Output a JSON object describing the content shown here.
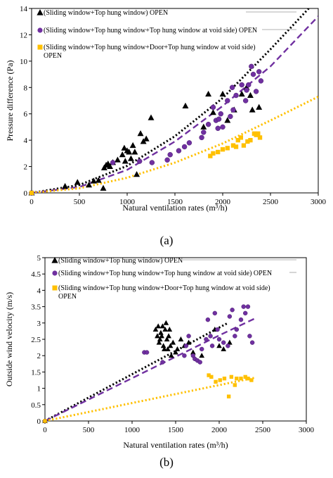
{
  "panels": [
    {
      "label": "(a)",
      "chart_data": {
        "type": "scatter",
        "xlabel": "Natural ventilation rates (m³/h)",
        "ylabel": "Pressure difference (Pa)",
        "xlim": [
          0,
          3000
        ],
        "ylim": [
          0,
          14
        ],
        "xticks": [
          "0",
          "500",
          "1000",
          "1500",
          "2000",
          "2500",
          "3000"
        ],
        "yticks": [
          "0",
          "2",
          "4",
          "6",
          "8",
          "10",
          "12",
          "14"
        ],
        "xtick_values": [
          0,
          500,
          1000,
          1500,
          2000,
          2500,
          3000
        ],
        "ytick_values": [
          0,
          2,
          4,
          6,
          8,
          10,
          12,
          14
        ],
        "grid": false,
        "legend_position": "top-left",
        "series": [
          {
            "name": "(Sliding window+Top hung window) OPEN",
            "marker": "triangle",
            "color": "#000000",
            "trend": {
              "style": "dotted",
              "color": "#000000",
              "points": [
                [
                  0,
                  0
                ],
                [
                  500,
                  0.6
                ],
                [
                  1000,
                  2.05
                ],
                [
                  1500,
                  4.3
                ],
                [
                  2000,
                  7.2
                ],
                [
                  2500,
                  10.9
                ],
                [
                  2900,
                  14.0
                ]
              ]
            },
            "points": [
              [
                0,
                0
              ],
              [
                350,
                0.5
              ],
              [
                480,
                0.8
              ],
              [
                600,
                0.6
              ],
              [
                650,
                0.9
              ],
              [
                700,
                0.95
              ],
              [
                750,
                0.35
              ],
              [
                760,
                1.9
              ],
              [
                780,
                2.1
              ],
              [
                800,
                2.2
              ],
              [
                820,
                2.0
              ],
              [
                850,
                2.3
              ],
              [
                900,
                2.5
              ],
              [
                950,
                2.9
              ],
              [
                970,
                3.4
              ],
              [
                980,
                2.4
              ],
              [
                1000,
                3.2
              ],
              [
                1020,
                3.1
              ],
              [
                1040,
                2.6
              ],
              [
                1060,
                3.6
              ],
              [
                1080,
                3.1
              ],
              [
                1100,
                1.4
              ],
              [
                1140,
                4.5
              ],
              [
                1170,
                3.9
              ],
              [
                1200,
                4.1
              ],
              [
                1250,
                5.7
              ],
              [
                1610,
                6.6
              ],
              [
                1800,
                5.0
              ],
              [
                1850,
                7.5
              ],
              [
                1900,
                6.1
              ],
              [
                2000,
                7.5
              ],
              [
                2050,
                5.5
              ],
              [
                2120,
                6.3
              ],
              [
                2200,
                7.5
              ],
              [
                2250,
                8.0
              ],
              [
                2290,
                7.4
              ],
              [
                2310,
                6.3
              ],
              [
                2380,
                6.5
              ]
            ]
          },
          {
            "name": "(Sliding window+Top hung window+Top hung window at void side) OPEN",
            "marker": "circle",
            "color": "#7030a0",
            "trend": {
              "style": "dashed",
              "color": "#7030a0",
              "points": [
                [
                  0,
                  0
                ],
                [
                  500,
                  0.45
                ],
                [
                  1000,
                  1.75
                ],
                [
                  1500,
                  3.9
                ],
                [
                  2000,
                  6.6
                ],
                [
                  2500,
                  9.6
                ],
                [
                  3000,
                  13.4
                ]
              ]
            },
            "points": [
              [
                0,
                0
              ],
              [
                850,
                2.3
              ],
              [
                1130,
                2.4
              ],
              [
                1260,
                2.3
              ],
              [
                1420,
                2.5
              ],
              [
                1450,
                2.9
              ],
              [
                1540,
                3.2
              ],
              [
                1600,
                3.5
              ],
              [
                1650,
                3.8
              ],
              [
                1780,
                4.2
              ],
              [
                1800,
                4.6
              ],
              [
                1850,
                5.2
              ],
              [
                1900,
                6.5
              ],
              [
                1930,
                5.5
              ],
              [
                1950,
                4.9
              ],
              [
                1960,
                5.6
              ],
              [
                1980,
                6.0
              ],
              [
                2000,
                5.0
              ],
              [
                2050,
                7.0
              ],
              [
                2080,
                5.8
              ],
              [
                2100,
                8.0
              ],
              [
                2110,
                6.3
              ],
              [
                2140,
                7.4
              ],
              [
                2200,
                8.2
              ],
              [
                2240,
                7.0
              ],
              [
                2250,
                7.8
              ],
              [
                2270,
                8.2
              ],
              [
                2300,
                9.6
              ],
              [
                2320,
                9.0
              ],
              [
                2350,
                7.7
              ],
              [
                2380,
                9.2
              ],
              [
                2400,
                8.5
              ]
            ]
          },
          {
            "name": "(Sliding window+Top hung window+Door+Top hung window at void side) OPEN",
            "marker": "square",
            "color": "#ffc000",
            "trend": {
              "style": "dotted",
              "color": "#ffc000",
              "points": [
                [
                  0,
                  0
                ],
                [
                  500,
                  0.35
                ],
                [
                  1000,
                  1.15
                ],
                [
                  1500,
                  2.3
                ],
                [
                  2000,
                  3.75
                ],
                [
                  2500,
                  5.5
                ],
                [
                  3000,
                  7.3
                ]
              ]
            },
            "points": [
              [
                0,
                0
              ],
              [
                1870,
                2.8
              ],
              [
                1900,
                3.0
              ],
              [
                1950,
                3.1
              ],
              [
                2000,
                3.3
              ],
              [
                2050,
                3.4
              ],
              [
                2110,
                3.6
              ],
              [
                2140,
                3.5
              ],
              [
                2160,
                4.0
              ],
              [
                2190,
                4.2
              ],
              [
                2220,
                3.6
              ],
              [
                2260,
                3.9
              ],
              [
                2290,
                4.0
              ],
              [
                2330,
                4.5
              ],
              [
                2350,
                4.4
              ],
              [
                2370,
                4.5
              ],
              [
                2390,
                4.2
              ]
            ]
          }
        ]
      }
    },
    {
      "label": "(b)",
      "chart_data": {
        "type": "scatter",
        "xlabel": "Natural ventilation rates (m³/h)",
        "ylabel": "Outside wind velocity (m/s)",
        "xlim": [
          0,
          3000
        ],
        "ylim": [
          0,
          5
        ],
        "xticks": [
          "0",
          "500",
          "1000",
          "1500",
          "2000",
          "2500",
          "3000"
        ],
        "yticks": [
          "0",
          "0.5",
          "1",
          "1.5",
          "2",
          "2.5",
          "3",
          "3.5",
          "4",
          "4.5",
          "5"
        ],
        "xtick_values": [
          0,
          500,
          1000,
          1500,
          2000,
          2500,
          3000
        ],
        "ytick_values": [
          0,
          0.5,
          1,
          1.5,
          2,
          2.5,
          3,
          3.5,
          4,
          4.5,
          5
        ],
        "grid": false,
        "legend_position": "top-left",
        "series": [
          {
            "name": "(Sliding window+Top hung window) OPEN",
            "marker": "triangle",
            "color": "#000000",
            "trend": {
              "style": "dotted",
              "color": "#000000",
              "points": [
                [
                  0,
                  0
                ],
                [
                  1000,
                  1.43
                ],
                [
                  2000,
                  2.86
                ],
                [
                  2100,
                  3.0
                ]
              ]
            },
            "points": [
              [
                0,
                0
              ],
              [
                1270,
                2.8
              ],
              [
                1290,
                2.6
              ],
              [
                1300,
                2.9
              ],
              [
                1310,
                2.4
              ],
              [
                1320,
                2.5
              ],
              [
                1330,
                2.7
              ],
              [
                1340,
                2.6
              ],
              [
                1350,
                2.9
              ],
              [
                1360,
                2.3
              ],
              [
                1370,
                2.2
              ],
              [
                1380,
                2.8
              ],
              [
                1390,
                3.0
              ],
              [
                1400,
                2.5
              ],
              [
                1410,
                2.2
              ],
              [
                1420,
                2.6
              ],
              [
                1430,
                2.8
              ],
              [
                1440,
                2.3
              ],
              [
                1450,
                2.0
              ],
              [
                1470,
                2.4
              ],
              [
                1500,
                2.1
              ],
              [
                1520,
                2.2
              ],
              [
                1560,
                2.5
              ],
              [
                1600,
                2.3
              ],
              [
                1650,
                2.4
              ],
              [
                1700,
                2.1
              ],
              [
                1800,
                2.0
              ],
              [
                1950,
                2.8
              ],
              [
                2000,
                2.3
              ],
              [
                2050,
                2.2
              ],
              [
                2120,
                2.4
              ]
            ]
          },
          {
            "name": "(Sliding window+Top hung window+Top hung window at void side) OPEN",
            "marker": "circle",
            "color": "#7030a0",
            "trend": {
              "style": "dashed",
              "color": "#7030a0",
              "points": [
                [
                  0,
                  0
                ],
                [
                  1000,
                  1.31
                ],
                [
                  2000,
                  2.62
                ],
                [
                  2420,
                  3.15
                ]
              ]
            },
            "points": [
              [
                0,
                0
              ],
              [
                1140,
                2.1
              ],
              [
                1170,
                2.1
              ],
              [
                1350,
                1.8
              ],
              [
                1600,
                2.0
              ],
              [
                1620,
                2.3
              ],
              [
                1650,
                2.6
              ],
              [
                1700,
                2.0
              ],
              [
                1720,
                1.9
              ],
              [
                1750,
                1.85
              ],
              [
                1780,
                1.8
              ],
              [
                1800,
                2.2
              ],
              [
                1850,
                2.5
              ],
              [
                1870,
                3.1
              ],
              [
                1900,
                2.6
              ],
              [
                1920,
                2.3
              ],
              [
                1950,
                3.3
              ],
              [
                1980,
                2.8
              ],
              [
                2000,
                2.5
              ],
              [
                2050,
                2.4
              ],
              [
                2100,
                2.3
              ],
              [
                2120,
                3.2
              ],
              [
                2150,
                3.4
              ],
              [
                2180,
                2.6
              ],
              [
                2200,
                2.8
              ],
              [
                2250,
                3.1
              ],
              [
                2280,
                3.5
              ],
              [
                2300,
                3.3
              ],
              [
                2330,
                3.5
              ],
              [
                2350,
                2.6
              ],
              [
                2380,
                2.4
              ]
            ]
          },
          {
            "name": "(Sliding window+Top hung window+Door+Top hung window at void side) OPEN",
            "marker": "square",
            "color": "#ffc000",
            "trend": {
              "style": "dotted",
              "color": "#ffc000",
              "points": [
                [
                  0,
                  0
                ],
                [
                  1000,
                  0.55
                ],
                [
                  2000,
                  1.1
                ],
                [
                  2400,
                  1.32
                ]
              ]
            },
            "points": [
              [
                0,
                0
              ],
              [
                1880,
                1.4
              ],
              [
                1910,
                1.35
              ],
              [
                1960,
                1.2
              ],
              [
                2010,
                1.25
              ],
              [
                2060,
                1.3
              ],
              [
                2110,
                0.75
              ],
              [
                2140,
                1.35
              ],
              [
                2180,
                1.1
              ],
              [
                2200,
                1.3
              ],
              [
                2250,
                1.3
              ],
              [
                2300,
                1.35
              ],
              [
                2330,
                1.3
              ],
              [
                2370,
                1.25
              ]
            ]
          }
        ]
      }
    }
  ]
}
